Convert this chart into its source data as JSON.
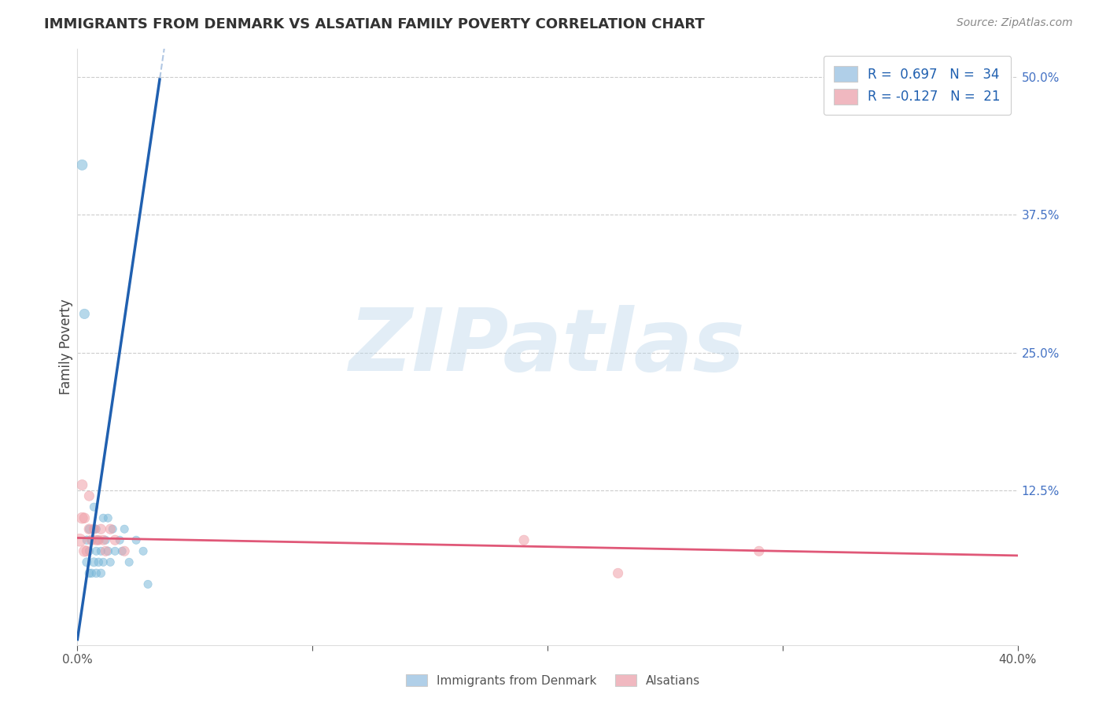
{
  "title": "IMMIGRANTS FROM DENMARK VS ALSATIAN FAMILY POVERTY CORRELATION CHART",
  "source": "Source: ZipAtlas.com",
  "ylabel": "Family Poverty",
  "xlim": [
    0.0,
    0.4
  ],
  "ylim": [
    -0.015,
    0.525
  ],
  "xticks": [
    0.0,
    0.1,
    0.2,
    0.3,
    0.4
  ],
  "xticklabels": [
    "0.0%",
    "",
    "",
    "",
    "40.0%"
  ],
  "ytick_positions": [
    0.0,
    0.125,
    0.25,
    0.375,
    0.5
  ],
  "ytick_labels": [
    "",
    "12.5%",
    "25.0%",
    "37.5%",
    "50.0%"
  ],
  "legend1_label": "R =  0.697   N =  34",
  "legend2_label": "R = -0.127   N =  21",
  "watermark": "ZIPatlas",
  "watermark_color": "#b8d4ea",
  "background_color": "#ffffff",
  "blue_scatter_color": "#7ab8d9",
  "pink_scatter_color": "#f0a0a8",
  "blue_line_color": "#2060b0",
  "pink_line_color": "#e05878",
  "grid_color": "#cccccc",
  "blue_legend_patch": "#b0cfe8",
  "pink_legend_patch": "#f0b8c0",
  "legend_text_color": "#2060b0",
  "title_color": "#333333",
  "source_color": "#888888",
  "ylabel_color": "#444444",
  "tick_color": "#555555",
  "yticklabel_color": "#4472c4",
  "denmark_x": [
    0.002,
    0.003,
    0.004,
    0.004,
    0.005,
    0.005,
    0.005,
    0.006,
    0.006,
    0.007,
    0.007,
    0.007,
    0.008,
    0.008,
    0.008,
    0.009,
    0.009,
    0.01,
    0.01,
    0.011,
    0.011,
    0.012,
    0.013,
    0.013,
    0.014,
    0.015,
    0.016,
    0.018,
    0.019,
    0.02,
    0.022,
    0.025,
    0.028,
    0.03
  ],
  "denmark_y": [
    0.42,
    0.285,
    0.06,
    0.08,
    0.05,
    0.07,
    0.09,
    0.05,
    0.08,
    0.06,
    0.09,
    0.11,
    0.05,
    0.07,
    0.09,
    0.06,
    0.08,
    0.05,
    0.07,
    0.06,
    0.1,
    0.08,
    0.07,
    0.1,
    0.06,
    0.09,
    0.07,
    0.08,
    0.07,
    0.09,
    0.06,
    0.08,
    0.07,
    0.04
  ],
  "denmark_sizes": [
    90,
    80,
    65,
    60,
    60,
    55,
    55,
    60,
    55,
    65,
    55,
    55,
    60,
    55,
    55,
    60,
    55,
    60,
    55,
    55,
    55,
    55,
    60,
    55,
    55,
    55,
    55,
    55,
    55,
    55,
    55,
    55,
    55,
    55
  ],
  "alsatian_x": [
    0.001,
    0.002,
    0.002,
    0.003,
    0.003,
    0.004,
    0.005,
    0.005,
    0.006,
    0.007,
    0.008,
    0.009,
    0.01,
    0.011,
    0.012,
    0.014,
    0.016,
    0.02,
    0.19,
    0.23,
    0.29
  ],
  "alsatian_y": [
    0.08,
    0.1,
    0.13,
    0.07,
    0.1,
    0.07,
    0.09,
    0.12,
    0.08,
    0.09,
    0.08,
    0.08,
    0.09,
    0.08,
    0.07,
    0.09,
    0.08,
    0.07,
    0.08,
    0.05,
    0.07
  ],
  "alsatian_sizes": [
    130,
    100,
    90,
    100,
    85,
    85,
    85,
    80,
    85,
    80,
    80,
    80,
    80,
    80,
    80,
    80,
    80,
    80,
    80,
    80,
    80
  ],
  "blue_slope": 14.5,
  "blue_intercept": -0.01,
  "blue_line_xstart": 0.0,
  "blue_line_xend": 0.035,
  "dash_xstart": 0.012,
  "dash_xend": 0.038,
  "pink_slope": -0.04,
  "pink_intercept": 0.082,
  "pink_line_xstart": 0.0,
  "pink_line_xend": 0.4
}
